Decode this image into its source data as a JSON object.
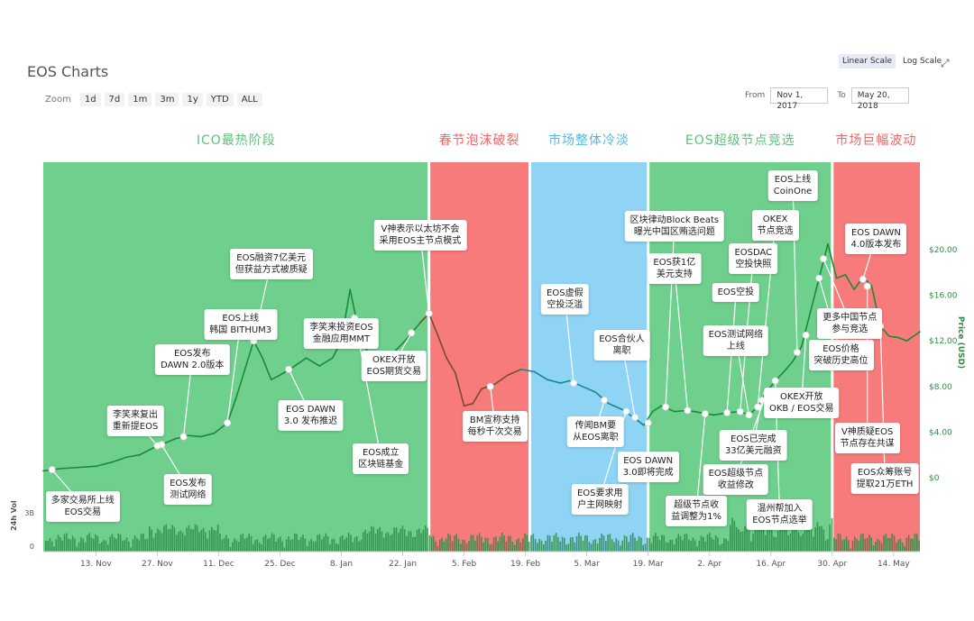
{
  "header": {
    "title": "EOS Charts",
    "zoom_label": "Zoom",
    "zoom_options": [
      "1d",
      "7d",
      "1m",
      "3m",
      "1y",
      "YTD",
      "ALL"
    ],
    "scale_linear": "Linear Scale",
    "scale_log": "Log Scale",
    "active_scale": "linear",
    "from_label": "From",
    "from_value": "Nov 1, 2017",
    "to_label": "To",
    "to_value": "May 20, 2018"
  },
  "phases": [
    {
      "label": "ICO最热阶段",
      "color": "#6fcf8d",
      "start": "2017-11-01",
      "end": "2018-01-28"
    },
    {
      "label": "春节泡沫破裂",
      "color": "#f77b7b",
      "start": "2018-01-28",
      "end": "2018-02-20"
    },
    {
      "label": "市场整体冷淡",
      "color": "#8fd3f5",
      "start": "2018-02-20",
      "end": "2018-03-19"
    },
    {
      "label": "EOS超级节点竞选",
      "color": "#6fcf8d",
      "start": "2018-03-19",
      "end": "2018-04-30"
    },
    {
      "label": "市场巨幅波动",
      "color": "#f77b7b",
      "start": "2018-04-30",
      "end": "2018-05-20"
    }
  ],
  "chart_data": {
    "type": "line",
    "title": "EOS Charts",
    "xlabel": "",
    "ylabel": "Price (USD)",
    "y2label": "24h Vol",
    "ylim": [
      0,
      22
    ],
    "x_ticks": [
      "13. Nov",
      "27. Nov",
      "11. Dec",
      "25. Dec",
      "8. Jan",
      "22. Jan",
      "5. Feb",
      "19. Feb",
      "5. Mar",
      "19. Mar",
      "2. Apr",
      "16. Apr",
      "30. Apr",
      "14. May"
    ],
    "x_tick_dates": [
      "2017-11-13",
      "2017-11-27",
      "2017-12-11",
      "2017-12-25",
      "2018-01-08",
      "2018-01-22",
      "2018-02-05",
      "2018-02-19",
      "2018-03-05",
      "2018-03-19",
      "2018-04-02",
      "2018-04-16",
      "2018-04-30",
      "2018-05-14"
    ],
    "y_ticks": [
      "$0",
      "$4.00",
      "$8.00",
      "$12.00",
      "$16.00",
      "$20.00"
    ],
    "y_tick_values": [
      0,
      4,
      8,
      12,
      16,
      20
    ],
    "vol_ticks": [
      "0",
      "3B"
    ],
    "grid": false,
    "series": [
      {
        "color": "#1a8a3a",
        "points": [
          [
            "2017-11-01",
            0.6
          ],
          [
            "2017-11-05",
            0.8
          ],
          [
            "2017-11-09",
            0.9
          ],
          [
            "2017-11-13",
            1.0
          ],
          [
            "2017-11-17",
            1.4
          ],
          [
            "2017-11-20",
            1.8
          ],
          [
            "2017-11-23",
            2.0
          ],
          [
            "2017-11-26",
            2.6
          ],
          [
            "2017-11-28",
            2.9
          ],
          [
            "2017-12-01",
            3.4
          ],
          [
            "2017-12-04",
            3.7
          ],
          [
            "2017-12-07",
            3.6
          ],
          [
            "2017-12-10",
            3.9
          ],
          [
            "2017-12-13",
            4.8
          ],
          [
            "2017-12-15",
            7.0
          ],
          [
            "2017-12-17",
            9.5
          ],
          [
            "2017-12-19",
            12.0
          ],
          [
            "2017-12-21",
            10.5
          ],
          [
            "2017-12-23",
            8.6
          ],
          [
            "2017-12-25",
            9.0
          ],
          [
            "2017-12-28",
            9.7
          ],
          [
            "2017-12-31",
            10.5
          ],
          [
            "2018-01-03",
            9.8
          ],
          [
            "2018-01-06",
            10.5
          ],
          [
            "2018-01-08",
            12.0
          ],
          [
            "2018-01-10",
            16.5
          ],
          [
            "2018-01-12",
            12.8
          ],
          [
            "2018-01-14",
            11.0
          ],
          [
            "2018-01-16",
            9.0
          ],
          [
            "2018-01-18",
            10.2
          ],
          [
            "2018-01-20",
            11.0
          ],
          [
            "2018-01-23",
            12.2
          ],
          [
            "2018-01-26",
            13.6
          ],
          [
            "2018-01-28",
            14.4
          ],
          [
            "2018-01-30",
            12.5
          ],
          [
            "2018-02-01",
            10.5
          ],
          [
            "2018-02-03",
            9.2
          ],
          [
            "2018-02-05",
            6.3
          ],
          [
            "2018-02-07",
            6.5
          ],
          [
            "2018-02-09",
            7.8
          ],
          [
            "2018-02-12",
            8.2
          ],
          [
            "2018-02-15",
            9.0
          ],
          [
            "2018-02-18",
            9.5
          ],
          [
            "2018-02-21",
            9.3
          ],
          [
            "2018-02-24",
            8.6
          ],
          [
            "2018-02-27",
            8.3
          ],
          [
            "2018-03-01",
            8.5
          ],
          [
            "2018-03-04",
            8.0
          ],
          [
            "2018-03-07",
            7.5
          ],
          [
            "2018-03-10",
            6.5
          ],
          [
            "2018-03-13",
            6.0
          ],
          [
            "2018-03-16",
            5.2
          ],
          [
            "2018-03-18",
            4.6
          ],
          [
            "2018-03-20",
            5.8
          ],
          [
            "2018-03-22",
            6.3
          ],
          [
            "2018-03-25",
            5.8
          ],
          [
            "2018-03-28",
            5.9
          ],
          [
            "2018-03-31",
            5.7
          ],
          [
            "2018-04-03",
            5.5
          ],
          [
            "2018-04-06",
            5.7
          ],
          [
            "2018-04-09",
            5.8
          ],
          [
            "2018-04-11",
            5.5
          ],
          [
            "2018-04-13",
            6.2
          ],
          [
            "2018-04-15",
            7.5
          ],
          [
            "2018-04-17",
            8.5
          ],
          [
            "2018-04-19",
            9.3
          ],
          [
            "2018-04-21",
            10.2
          ],
          [
            "2018-04-23",
            11.5
          ],
          [
            "2018-04-25",
            14.5
          ],
          [
            "2018-04-27",
            17.5
          ],
          [
            "2018-04-29",
            20.5
          ],
          [
            "2018-05-01",
            17.5
          ],
          [
            "2018-05-03",
            17.8
          ],
          [
            "2018-05-05",
            16.5
          ],
          [
            "2018-05-07",
            17.6
          ],
          [
            "2018-05-09",
            16.8
          ],
          [
            "2018-05-11",
            13.3
          ],
          [
            "2018-05-13",
            12.4
          ],
          [
            "2018-05-15",
            12.3
          ],
          [
            "2018-05-17",
            12.0
          ],
          [
            "2018-05-20",
            12.8
          ]
        ]
      }
    ],
    "annotations": [
      {
        "text": "多家交易所上线\nEOS交易",
        "date": "2017-11-03",
        "value": 0.7,
        "label_date": "2017-11-10",
        "label_value": -2.4
      },
      {
        "text": "EOS发布\n测试网络",
        "date": "2017-11-28",
        "value": 2.9,
        "label_date": "2017-12-04",
        "label_value": -0.9
      },
      {
        "text": "李笑来复出\n重新提EOS",
        "date": "2017-11-27",
        "value": 2.8,
        "label_date": "2017-11-22",
        "label_value": 5.1
      },
      {
        "text": "EOS发布\nDAWN 2.0版本",
        "date": "2017-12-03",
        "value": 3.6,
        "label_date": "2017-12-05",
        "label_value": 10.5
      },
      {
        "text": "EOS上线\n韩国 BITHUM3",
        "date": "2017-12-13",
        "value": 4.8,
        "label_date": "2017-12-16",
        "label_value": 13.6
      },
      {
        "text": "EOS融资7亿美元\n但获益方式被质疑",
        "date": "2017-12-19",
        "value": 12.0,
        "label_date": "2017-12-23",
        "label_value": 18.9
      },
      {
        "text": "EOS DAWN\n3.0 发布推迟",
        "date": "2017-12-27",
        "value": 9.5,
        "label_date": "2018-01-01",
        "label_value": 5.6
      },
      {
        "text": "李笑来投资EOS\n金融应用MMT",
        "date": "2018-01-08",
        "value": 12.0,
        "label_date": "2018-01-08",
        "label_value": 12.8
      },
      {
        "text": "EOS成立\n区块链基金",
        "date": "2018-01-11",
        "value": 14.0,
        "label_date": "2018-01-17",
        "label_value": 1.8
      },
      {
        "text": "OKEX开放\nEOS期货交易",
        "date": "2018-01-24",
        "value": 12.7,
        "label_date": "2018-01-20",
        "label_value": 10.0
      },
      {
        "text": "V神表示以太坊不会\n采用EOS主节点模式",
        "date": "2018-01-28",
        "value": 14.4,
        "label_date": "2018-01-26",
        "label_value": 21.4
      },
      {
        "text": "BM宣称支持\n每秒千次交易",
        "date": "2018-02-11",
        "value": 8.0,
        "label_date": "2018-02-12",
        "label_value": 4.7
      },
      {
        "text": "EOS虚假\n空投泛滥",
        "date": "2018-03-02",
        "value": 8.3,
        "label_date": "2018-02-28",
        "label_value": 15.8
      },
      {
        "text": "传闻BM要\n从EOS离职",
        "date": "2018-03-09",
        "value": 6.8,
        "label_date": "2018-03-07",
        "label_value": 4.2
      },
      {
        "text": "EOS合伙人\n离职",
        "date": "2018-03-16",
        "value": 5.3,
        "label_date": "2018-03-13",
        "label_value": 11.8
      },
      {
        "text": "EOS DAWN\n3.0即将完成",
        "date": "2018-03-19",
        "value": 4.8,
        "label_date": "2018-03-19",
        "label_value": 1.1
      },
      {
        "text": "EOS要求用\n户主网映射",
        "date": "2018-03-14",
        "value": 5.8,
        "label_date": "2018-03-08",
        "label_value": -1.7
      },
      {
        "text": "区块律动Block Beats\n曝光中国区贿选问题",
        "date": "2018-03-23",
        "value": 6.2,
        "label_date": "2018-03-25",
        "label_value": 22.2
      },
      {
        "text": "EOS获1亿\n美元支持",
        "date": "2018-03-28",
        "value": 5.9,
        "label_date": "2018-03-25",
        "label_value": 18.5
      },
      {
        "text": "超级节点收\n益调整为1%",
        "date": "2018-04-01",
        "value": 5.6,
        "label_date": "2018-03-30",
        "label_value": -2.8
      },
      {
        "text": "EOS空投",
        "date": "2018-04-06",
        "value": 5.7,
        "label_date": "2018-04-08",
        "label_value": 15.9
      },
      {
        "text": "EOSDAC\n空投快照",
        "date": "2018-04-09",
        "value": 5.8,
        "label_date": "2018-04-12",
        "label_value": 19.4
      },
      {
        "text": "EOS测试网络\n上线",
        "date": "2018-04-11",
        "value": 5.5,
        "label_date": "2018-04-08",
        "label_value": 12.2
      },
      {
        "text": "OKEX\n节点竞选",
        "date": "2018-04-13",
        "value": 6.2,
        "label_date": "2018-04-17",
        "label_value": 22.3
      },
      {
        "text": "EOS上线\nCoinOne",
        "date": "2018-04-22",
        "value": 11.0,
        "label_date": "2018-04-21",
        "label_value": 25.8
      },
      {
        "text": "EOS已完成\n33亿美元融资",
        "date": "2018-04-14",
        "value": 6.8,
        "label_date": "2018-04-12",
        "label_value": 3.0
      },
      {
        "text": "EOS超级节点\n收益修改",
        "date": "2018-04-15",
        "value": 7.4,
        "label_date": "2018-04-08",
        "label_value": 0.0
      },
      {
        "text": "温州帮加入\nEOS节点选举",
        "date": "2018-04-17",
        "value": 8.5,
        "label_date": "2018-04-18",
        "label_value": -3.1
      },
      {
        "text": "OKEX开放\nOKB / EOS交易",
        "date": "2018-04-24",
        "value": 12.5,
        "label_date": "2018-04-23",
        "label_value": 6.7
      },
      {
        "text": "EOS价格\n突破历史高位",
        "date": "2018-04-27",
        "value": 17.5,
        "label_date": "2018-05-02",
        "label_value": 10.9
      },
      {
        "text": "更多中国节点\n参与竞选",
        "date": "2018-04-28",
        "value": 19.2,
        "label_date": "2018-05-04",
        "label_value": 13.7
      },
      {
        "text": "EOS DAWN\n4.0版本发布",
        "date": "2018-05-07",
        "value": 17.4,
        "label_date": "2018-05-10",
        "label_value": 21.1
      },
      {
        "text": "V神质疑EOS\n节点存在共谋",
        "date": "2018-05-08",
        "value": 16.8,
        "label_date": "2018-05-08",
        "label_value": 3.6
      },
      {
        "text": "EOS众筹账号\n提取21万ETH",
        "date": "2018-05-11",
        "value": 13.3,
        "label_date": "2018-05-12",
        "label_value": 0.1
      }
    ]
  }
}
